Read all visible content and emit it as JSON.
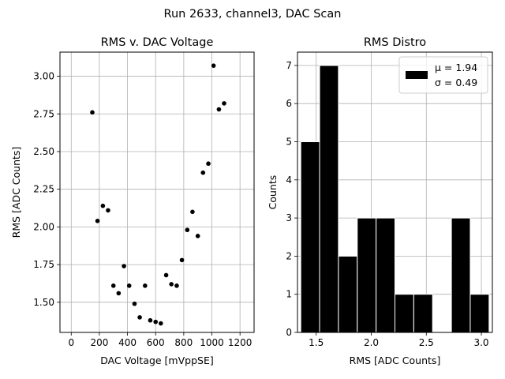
{
  "suptitle": "Run 2633, channel3, DAC Scan",
  "chart_data": [
    {
      "type": "scatter",
      "title": "RMS v. DAC Voltage",
      "xlabel": "DAC Voltage [mVppSE]",
      "ylabel": "RMS [ADC Counts]",
      "xlim": [
        -80,
        1300
      ],
      "ylim": [
        1.3,
        3.16
      ],
      "xticks": [
        0,
        200,
        400,
        600,
        800,
        1000,
        1200
      ],
      "xtick_labels": [
        "0",
        "200",
        "400",
        "600",
        "800",
        "1000",
        "1200"
      ],
      "yticks": [
        1.5,
        1.75,
        2.0,
        2.25,
        2.5,
        2.75,
        3.0
      ],
      "ytick_labels": [
        "1.50",
        "1.75",
        "2.00",
        "2.25",
        "2.50",
        "2.75",
        "3.00"
      ],
      "grid": true,
      "marker_color": "#000000",
      "points": [
        {
          "x": 150,
          "y": 2.76
        },
        {
          "x": 187,
          "y": 2.04
        },
        {
          "x": 225,
          "y": 2.14
        },
        {
          "x": 262,
          "y": 2.11
        },
        {
          "x": 300,
          "y": 1.61
        },
        {
          "x": 337,
          "y": 1.56
        },
        {
          "x": 375,
          "y": 1.74
        },
        {
          "x": 412,
          "y": 1.61
        },
        {
          "x": 450,
          "y": 1.49
        },
        {
          "x": 487,
          "y": 1.4
        },
        {
          "x": 525,
          "y": 1.61
        },
        {
          "x": 562,
          "y": 1.38
        },
        {
          "x": 600,
          "y": 1.37
        },
        {
          "x": 637,
          "y": 1.36
        },
        {
          "x": 675,
          "y": 1.68
        },
        {
          "x": 712,
          "y": 1.62
        },
        {
          "x": 750,
          "y": 1.61
        },
        {
          "x": 787,
          "y": 1.78
        },
        {
          "x": 825,
          "y": 1.98
        },
        {
          "x": 862,
          "y": 2.1
        },
        {
          "x": 900,
          "y": 1.94
        },
        {
          "x": 937,
          "y": 2.36
        },
        {
          "x": 975,
          "y": 2.42
        },
        {
          "x": 1012,
          "y": 3.07
        },
        {
          "x": 1050,
          "y": 2.78
        },
        {
          "x": 1087,
          "y": 2.82
        }
      ]
    },
    {
      "type": "bar",
      "title": "RMS Distro",
      "xlabel": "RMS [ADC Counts]",
      "ylabel": "Counts",
      "xlim": [
        1.33,
        3.1
      ],
      "ylim": [
        0,
        7.35
      ],
      "xticks": [
        1.5,
        2.0,
        2.5,
        3.0
      ],
      "xtick_labels": [
        "1.5",
        "2.0",
        "2.5",
        "3.0"
      ],
      "yticks": [
        0,
        1,
        2,
        3,
        4,
        5,
        6,
        7
      ],
      "ytick_labels": [
        "0",
        "1",
        "2",
        "3",
        "4",
        "5",
        "6",
        "7"
      ],
      "grid": true,
      "bar_color": "#000000",
      "bin_edges": [
        1.36,
        1.531,
        1.702,
        1.873,
        2.044,
        2.215,
        2.386,
        2.557,
        2.728,
        2.899,
        3.07
      ],
      "counts": [
        5,
        7,
        2,
        3,
        3,
        1,
        1,
        0,
        3,
        1
      ],
      "legend": {
        "placement": "top-right",
        "line1": "μ = 1.94",
        "line2": "σ = 0.49"
      }
    }
  ]
}
